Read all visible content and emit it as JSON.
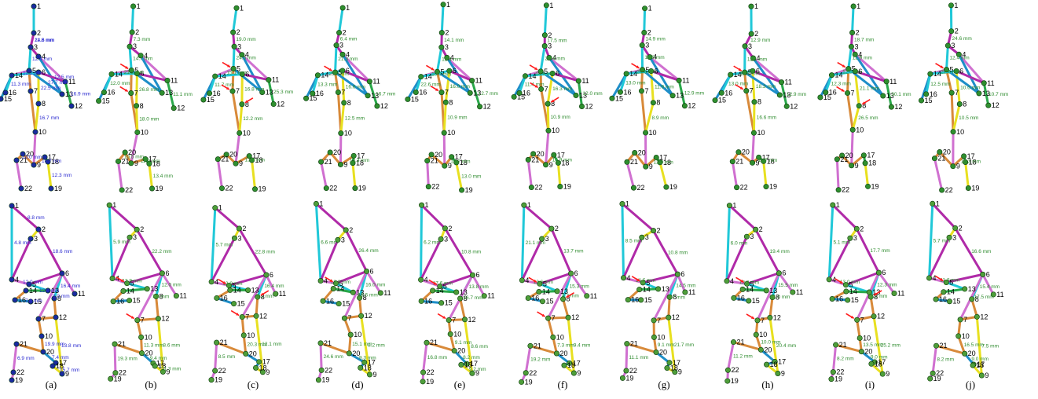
{
  "panel_captions": [
    "(a)",
    "(b)",
    "(c)",
    "(d)",
    "(e)",
    "(f)",
    "(g)",
    "(h)",
    "(i)",
    "(j)"
  ],
  "colors": {
    "reference_label": "#2a2ad0",
    "prediction_label": "#2e8b2e",
    "arrow": "#ff1a1a",
    "bone_cyan": "#20c8d8",
    "bone_blue": "#1e8ec8",
    "bone_magenta": "#b02aa8",
    "bone_pink": "#d070d0",
    "bone_orange": "#d88a3a",
    "bone_yellow": "#e8e020",
    "bone_green": "#2aa84a"
  },
  "rows": [
    {
      "view": "front",
      "panels": [
        {
          "measurements": [
            "24.6 mm",
            "12.4 mm",
            "22.5 mm",
            "16.7 mm",
            "16.9 mm",
            "12.2 mm",
            "11.3 mm",
            "10.7 mm",
            "12.3 mm",
            "10.0 mm",
            "27.7 mm",
            "12.5 mm",
            "11.8 mm"
          ]
        },
        {
          "measurements": [
            "7.3 mm",
            "14.7 mm",
            "26.8 mm",
            "18.0 mm",
            "11.1 mm",
            "21.3 mm",
            "12.0 mm",
            "11.9 mm",
            "13.4 mm",
            "10.5 mm"
          ]
        },
        {
          "measurements": [
            "19.0 mm",
            "24.5 mm",
            "16.8 mm",
            "12.2 mm",
            "25.3 mm",
            "15.1 mm",
            "11.7 mm",
            "13.6 mm"
          ]
        },
        {
          "measurements": [
            "6.4 mm",
            "21.3 mm",
            "16.6 mm",
            "12.5 mm",
            "16.7 mm",
            "25.0 mm",
            "13.3 mm",
            "13.3 mm"
          ]
        },
        {
          "measurements": [
            "14.1 mm",
            "12.4 mm",
            "16.0 mm",
            "10.9 mm",
            "12.7 mm",
            "10.0 mm",
            "22.6 mm",
            "14.2 mm",
            "13.0 mm"
          ]
        },
        {
          "measurements": [
            "17.5 mm",
            "24.4 mm",
            "16.3 mm",
            "10.9 mm",
            "12.0 mm",
            "14.6 mm",
            "11.4 mm",
            "10.9 mm"
          ]
        },
        {
          "measurements": [
            "14.9 mm",
            "16.8 mm",
            "11.9 mm",
            "8.9 mm",
            "12.9 mm",
            "25.8 mm",
            "13.0 mm",
            "12.0 mm"
          ]
        },
        {
          "measurements": [
            "12.9 mm",
            "12.1 mm",
            "18.3 mm",
            "16.6 mm",
            "12.9 mm",
            "12.0 mm",
            "13.0 mm",
            "11.7 mm"
          ]
        },
        {
          "measurements": [
            "18.7 mm",
            "12.9 mm",
            "21.1 mm",
            "26.5 mm",
            "30.1 mm",
            "12.5 mm",
            "12.3 mm"
          ]
        },
        {
          "measurements": [
            "24.6 mm",
            "12.4 mm",
            "10.0 mm",
            "10.5 mm",
            "10.7 mm",
            "22.6 mm",
            "12.5 mm",
            "12.3 mm"
          ]
        }
      ]
    },
    {
      "view": "side",
      "panels": [
        {
          "measurements": [
            "4.8 mm",
            "18.6 mm",
            "12.0 mm",
            "16.4 mm",
            "8.0 mm",
            "13.8 mm",
            "19.9 mm",
            "6.9 mm",
            "7.4 mm",
            "15.7 mm",
            "12.6 mm",
            "7.8 mm",
            "8.8 mm"
          ]
        },
        {
          "measurements": [
            "5.9 mm",
            "22.2 mm",
            "13.9 mm",
            "12.0 mm",
            "7.9 mm",
            "8.6 mm",
            "11.3 mm",
            "19.3 mm",
            "9.4 mm",
            "11.3 mm"
          ]
        },
        {
          "measurements": [
            "5.7 mm",
            "22.8 mm",
            "12.9 mm",
            "16.4 mm",
            "9.1 mm",
            "12.1 mm",
            "20.3 mm",
            "8.5 mm"
          ]
        },
        {
          "measurements": [
            "6.6 mm",
            "26.4 mm",
            "12.9 mm",
            "16.0 mm",
            "19.6 mm",
            "8.2 mm",
            "15.1 mm",
            "24.6 mm",
            "9.3 mm"
          ]
        },
        {
          "measurements": [
            "6.2 mm",
            "10.8 mm",
            "17.6 mm",
            "13.8 mm",
            "16.7 mm",
            "8.6 mm",
            "9.1 mm",
            "16.8 mm",
            "8.2 mm",
            "9.2 mm"
          ]
        },
        {
          "measurements": [
            "21.1 mm",
            "13.7 mm",
            "13.6 mm",
            "15.3 mm",
            "8.3 mm",
            "9.4 mm",
            "7.3 mm",
            "19.2 mm"
          ]
        },
        {
          "measurements": [
            "8.5 mm",
            "10.8 mm",
            "16.5 mm",
            "14.5 mm",
            "8.7 mm",
            "21.7 mm",
            "9.1 mm",
            "11.1 mm"
          ]
        },
        {
          "measurements": [
            "6.0 mm",
            "19.4 mm",
            "12.2 mm",
            "15.5 mm",
            "11.0 mm",
            "20.4 mm",
            "10.0 mm",
            "11.2 mm"
          ]
        },
        {
          "measurements": [
            "5.1 mm",
            "17.7 mm",
            "13.0 mm",
            "12.3 mm",
            "7.5 mm",
            "25.2 mm",
            "13.5 mm",
            "8.2 mm",
            "9.0 mm"
          ]
        },
        {
          "measurements": [
            "5.7 mm",
            "16.6 mm",
            "11.8 mm",
            "15.4 mm",
            "17.5 mm",
            "7.5 mm",
            "16.5 mm",
            "8.2 mm",
            "9.0 mm"
          ]
        }
      ]
    }
  ]
}
